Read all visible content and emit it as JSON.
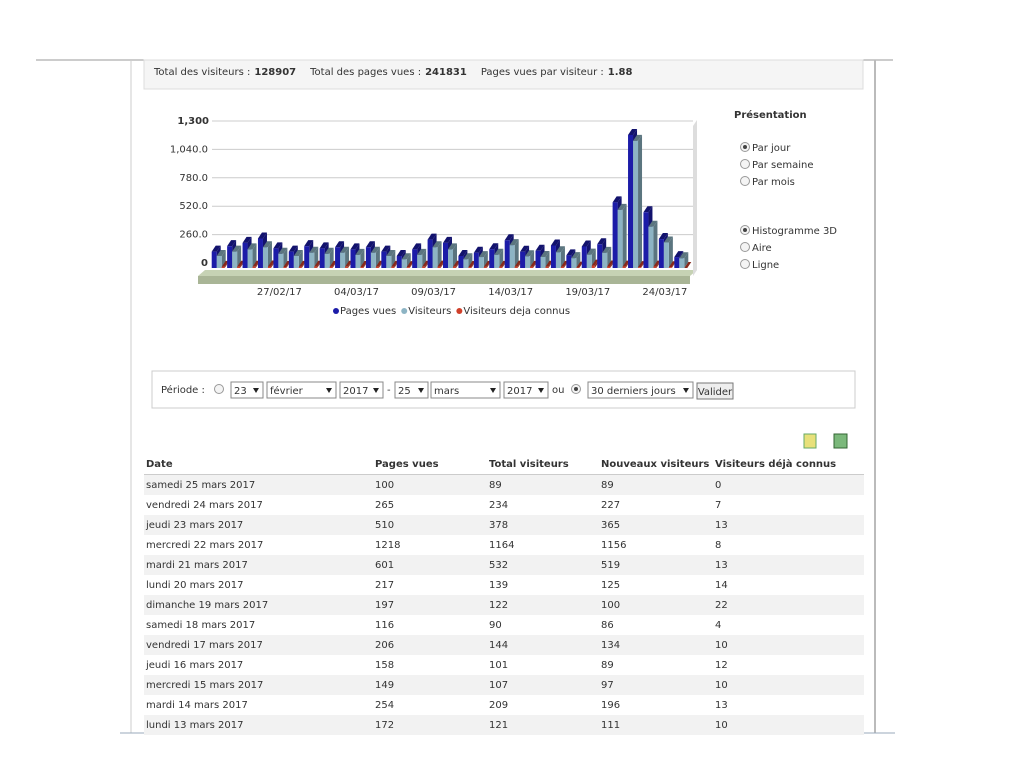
{
  "stats": [
    {
      "label": "Total des visiteurs :",
      "value": "128907"
    },
    {
      "label": "Total des pages vues :",
      "value": "241831"
    },
    {
      "label": "Pages vues par visiteur :",
      "value": "1.88"
    }
  ],
  "chart_data": {
    "type": "bar3d",
    "categories": [
      null,
      null,
      null,
      null,
      "27/02/17",
      null,
      null,
      null,
      null,
      "04/03/17",
      null,
      null,
      null,
      null,
      "09/03/17",
      null,
      null,
      null,
      null,
      "14/03/17",
      null,
      null,
      null,
      null,
      "19/03/17",
      null,
      null,
      null,
      null,
      "24/03/17",
      null
    ],
    "series": [
      {
        "name": "Pages vues",
        "color": "#1c1ca8",
        "values": [
          150,
          200,
          230,
          270,
          180,
          150,
          200,
          180,
          190,
          170,
          190,
          150,
          110,
          170,
          260,
          230,
          110,
          140,
          172,
          254,
          149,
          158,
          206,
          116,
          197,
          217,
          601,
          1218,
          510,
          265,
          100
        ]
      },
      {
        "name": "Visiteurs",
        "color": "#8db4c4",
        "values": [
          110,
          150,
          170,
          190,
          130,
          110,
          140,
          130,
          140,
          120,
          140,
          110,
          80,
          120,
          190,
          170,
          80,
          100,
          121,
          209,
          107,
          101,
          144,
          90,
          122,
          139,
          532,
          1164,
          378,
          234,
          89
        ]
      },
      {
        "name": "Visiteurs deja connus",
        "color": "#d0402a",
        "values": [
          10,
          12,
          11,
          14,
          9,
          10,
          12,
          10,
          11,
          9,
          12,
          10,
          8,
          11,
          13,
          12,
          9,
          10,
          10,
          13,
          10,
          12,
          10,
          4,
          22,
          14,
          13,
          8,
          13,
          7,
          0
        ]
      }
    ],
    "ylim": [
      0,
      1300
    ],
    "yticks": [
      0,
      {
        "value": 260,
        "label": "260.0"
      },
      {
        "value": 520,
        "label": "520.0"
      },
      {
        "value": 780,
        "label": "780.0"
      },
      {
        "value": 1040,
        "label": "1,040.0"
      },
      {
        "value": 1300,
        "label": "1,300"
      }
    ],
    "grid": true
  },
  "presentation": {
    "title": "Présentation",
    "periods": [
      "Par jour",
      "Par semaine",
      "Par mois"
    ],
    "chart_types": [
      "Histogramme 3D",
      "Aire",
      "Ligne"
    ]
  },
  "period": {
    "label": "Période :",
    "from_day": "23",
    "from_month": "février",
    "from_year": "2017",
    "separator": "-",
    "to_day": "25",
    "to_month": "mars",
    "to_year": "2017",
    "or": "ou",
    "preset": "30 derniers jours",
    "button": "Valider"
  },
  "table": {
    "headers": [
      "Date",
      "Pages vues",
      "Total visiteurs",
      "Nouveaux visiteurs",
      "Visiteurs déjà connus"
    ],
    "rows": [
      [
        "samedi 25 mars 2017",
        100,
        89,
        89,
        0
      ],
      [
        "vendredi 24 mars 2017",
        265,
        234,
        227,
        7
      ],
      [
        "jeudi 23 mars 2017",
        510,
        378,
        365,
        13
      ],
      [
        "mercredi 22 mars 2017",
        1218,
        1164,
        1156,
        8
      ],
      [
        "mardi 21 mars 2017",
        601,
        532,
        519,
        13
      ],
      [
        "lundi 20 mars 2017",
        217,
        139,
        125,
        14
      ],
      [
        "dimanche 19 mars 2017",
        197,
        122,
        100,
        22
      ],
      [
        "samedi 18 mars 2017",
        116,
        90,
        86,
        4
      ],
      [
        "vendredi 17 mars 2017",
        206,
        144,
        134,
        10
      ],
      [
        "jeudi 16 mars 2017",
        158,
        101,
        89,
        12
      ],
      [
        "mercredi 15 mars 2017",
        149,
        107,
        97,
        10
      ],
      [
        "mardi 14 mars 2017",
        254,
        209,
        196,
        13
      ],
      [
        "lundi 13 mars 2017",
        172,
        121,
        111,
        10
      ]
    ]
  }
}
